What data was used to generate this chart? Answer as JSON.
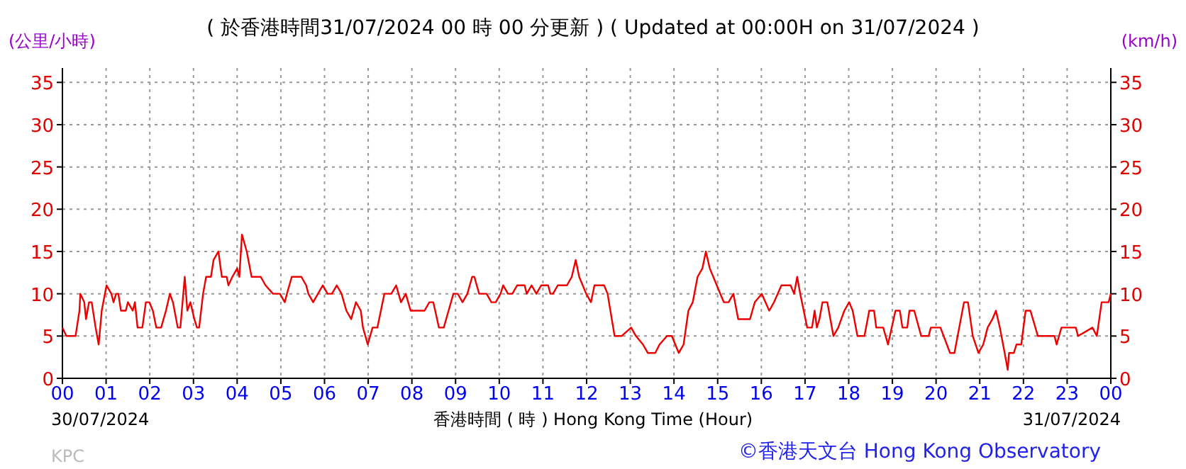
{
  "chart_data": {
    "type": "line",
    "title": "( 於香港時間31/07/2024 00 時 00 分更新 ) ( Updated at 00:00H on 31/07/2024 )",
    "ylabel": "(公里/小時)",
    "y2label": "(km/h)",
    "xlabel": "香港時間 ( 時 )  Hong Kong Time (Hour)",
    "annotations": [
      "30/07/2024",
      "31/07/2024",
      "KPC",
      "©香港天文台 Hong Kong Observatory"
    ],
    "grid": true,
    "xlim": [
      0,
      24
    ],
    "xticks": [
      {
        "value": 0,
        "label": "00"
      },
      {
        "value": 1,
        "label": "01"
      },
      {
        "value": 2,
        "label": "02"
      },
      {
        "value": 3,
        "label": "03"
      },
      {
        "value": 4,
        "label": "04"
      },
      {
        "value": 5,
        "label": "05"
      },
      {
        "value": 6,
        "label": "06"
      },
      {
        "value": 7,
        "label": "07"
      },
      {
        "value": 8,
        "label": "08"
      },
      {
        "value": 9,
        "label": "09"
      },
      {
        "value": 10,
        "label": "10"
      },
      {
        "value": 11,
        "label": "11"
      },
      {
        "value": 12,
        "label": "12"
      },
      {
        "value": 13,
        "label": "13"
      },
      {
        "value": 14,
        "label": "14"
      },
      {
        "value": 15,
        "label": "15"
      },
      {
        "value": 16,
        "label": "16"
      },
      {
        "value": 17,
        "label": "17"
      },
      {
        "value": 18,
        "label": "18"
      },
      {
        "value": 19,
        "label": "19"
      },
      {
        "value": 20,
        "label": "20"
      },
      {
        "value": 21,
        "label": "21"
      },
      {
        "value": 22,
        "label": "22"
      },
      {
        "value": 23,
        "label": "23"
      },
      {
        "value": 24,
        "label": "00"
      }
    ],
    "ylim": [
      0,
      36.7
    ],
    "yticks": [
      0,
      5,
      10,
      15,
      20,
      25,
      30,
      35
    ],
    "y2lim": [
      0,
      36.7
    ],
    "y2ticks": [
      0,
      5,
      10,
      15,
      20,
      25,
      30,
      35
    ],
    "series": [
      {
        "color": "#ee0000",
        "x": [
          0,
          0.09,
          0.2,
          0.3,
          0.39,
          0.41,
          0.5,
          0.54,
          0.61,
          0.67,
          0.76,
          0.83,
          0.9,
          1.01,
          1.12,
          1.17,
          1.23,
          1.28,
          1.34,
          1.45,
          1.5,
          1.61,
          1.66,
          1.72,
          1.83,
          1.91,
          1.99,
          2.07,
          2.15,
          2.26,
          2.37,
          2.46,
          2.53,
          2.64,
          2.7,
          2.8,
          2.86,
          2.93,
          3.02,
          3.08,
          3.13,
          3.22,
          3.29,
          3.4,
          3.46,
          3.57,
          3.65,
          3.76,
          3.8,
          3.89,
          4.0,
          4.05,
          4.11,
          4.22,
          4.33,
          4.54,
          4.65,
          4.82,
          4.98,
          5.09,
          5.14,
          5.25,
          5.47,
          5.58,
          5.63,
          5.74,
          5.85,
          5.96,
          6.07,
          6.17,
          6.28,
          6.39,
          6.5,
          6.61,
          6.72,
          6.83,
          6.88,
          6.99,
          7.1,
          7.21,
          7.37,
          7.53,
          7.64,
          7.75,
          7.86,
          7.97,
          8.13,
          8.29,
          8.4,
          8.49,
          8.62,
          8.73,
          8.84,
          8.95,
          9.05,
          9.16,
          9.27,
          9.38,
          9.43,
          9.54,
          9.71,
          9.82,
          9.92,
          10.03,
          10.09,
          10.2,
          10.3,
          10.41,
          10.58,
          10.63,
          10.74,
          10.85,
          10.96,
          11.12,
          11.17,
          11.23,
          11.34,
          11.45,
          11.55,
          11.66,
          11.75,
          11.83,
          11.99,
          12.1,
          12.18,
          12.32,
          12.4,
          12.48,
          12.64,
          12.8,
          13.02,
          13.13,
          13.29,
          13.4,
          13.57,
          13.67,
          13.84,
          13.95,
          14.03,
          14.11,
          14.22,
          14.33,
          14.43,
          14.54,
          14.65,
          14.73,
          14.82,
          14.98,
          15.14,
          15.25,
          15.36,
          15.47,
          15.74,
          15.85,
          16.01,
          16.18,
          16.29,
          16.46,
          16.67,
          16.75,
          16.82,
          16.89,
          17.05,
          17.16,
          17.22,
          17.27,
          17.33,
          17.4,
          17.51,
          17.65,
          17.76,
          17.9,
          18.01,
          18.09,
          18.2,
          18.36,
          18.47,
          18.58,
          18.63,
          18.79,
          18.9,
          19.07,
          19.17,
          19.23,
          19.34,
          19.39,
          19.5,
          19.66,
          19.83,
          19.88,
          20.1,
          20.32,
          20.42,
          20.64,
          20.73,
          20.84,
          20.97,
          21.08,
          21.18,
          21.29,
          21.37,
          21.46,
          21.57,
          21.64,
          21.67,
          21.78,
          21.84,
          21.95,
          22.05,
          22.16,
          22.33,
          22.71,
          22.76,
          22.87,
          23.2,
          23.25,
          23.58,
          23.68,
          23.79,
          23.95,
          24
        ],
        "values": [
          6,
          5,
          5,
          5,
          8,
          10,
          9,
          7,
          9,
          9,
          6,
          4,
          8,
          11,
          10,
          9,
          10,
          10,
          8,
          8,
          9,
          8,
          9,
          6,
          6,
          9,
          9,
          8,
          6,
          6,
          8,
          10,
          9,
          6,
          6,
          12,
          8,
          9,
          7,
          6,
          6,
          10,
          12,
          12,
          14,
          15,
          12,
          12,
          11,
          12,
          13,
          12,
          17,
          15,
          12,
          12,
          11,
          10,
          10,
          9,
          10,
          12,
          12,
          11,
          10,
          9,
          10,
          11,
          10,
          10,
          11,
          10,
          8,
          7,
          9,
          8,
          6,
          4,
          6,
          6,
          10,
          10,
          11,
          9,
          10,
          8,
          8,
          8,
          9,
          9,
          6,
          6,
          8,
          10,
          10,
          9,
          10,
          12,
          12,
          10,
          10,
          9,
          9,
          10,
          11,
          10,
          10,
          11,
          11,
          10,
          11,
          10,
          11,
          11,
          10,
          10,
          11,
          11,
          11,
          12,
          14,
          12,
          10,
          9,
          11,
          11,
          11,
          10,
          5,
          5,
          6,
          5,
          4,
          3,
          3,
          4,
          5,
          5,
          4,
          3,
          4,
          8,
          9,
          12,
          13,
          15,
          13,
          11,
          9,
          9,
          10,
          7,
          7,
          9,
          10,
          8,
          9,
          11,
          11,
          10,
          12,
          10,
          6,
          6,
          8,
          6,
          7,
          9,
          9,
          5,
          6,
          8,
          9,
          8,
          5,
          5,
          8,
          8,
          6,
          6,
          4,
          8,
          8,
          6,
          6,
          8,
          8,
          5,
          5,
          6,
          6,
          3,
          3,
          9,
          9,
          5,
          3,
          4,
          6,
          7,
          8,
          6,
          3,
          1,
          3,
          3,
          4,
          4,
          8,
          8,
          5,
          5,
          4,
          6,
          6,
          5,
          6,
          5,
          9,
          9,
          10
        ]
      }
    ]
  }
}
